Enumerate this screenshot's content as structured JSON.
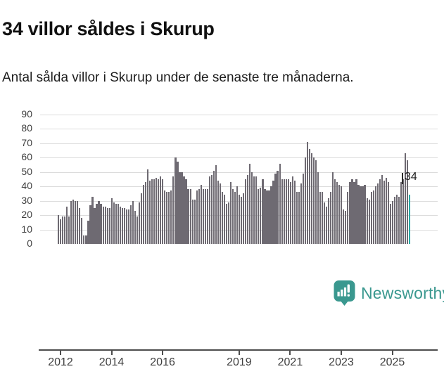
{
  "title": "34 villor såldes i Skurup",
  "subtitle": "Antal sålda villor i Skurup under de senaste tre månaderna.",
  "annotation": {
    "label": "34"
  },
  "branding": {
    "name": "Newsworthy"
  },
  "colors": {
    "bar": "#6e6a72",
    "highlight": "#2aa9a5",
    "axis": "#4d4d4d",
    "grid": "#dcdcdc",
    "brand_teal": "#3a988f",
    "text": "#3f3f3f"
  },
  "chart_data": {
    "type": "bar",
    "title": "34 villor såldes i Skurup",
    "subtitle": "Antal sålda villor i Skurup under de senaste tre månaderna.",
    "ylabel": "",
    "xlabel": "",
    "ylim": [
      0,
      90
    ],
    "y_ticks": [
      0,
      10,
      20,
      30,
      40,
      50,
      60,
      70,
      80,
      90
    ],
    "grid": true,
    "x_tick_labels": [
      "2012",
      "2014",
      "2016",
      "2019",
      "2021",
      "2023",
      "2025"
    ],
    "x_tick_years": [
      2012,
      2014,
      2016,
      2019,
      2021,
      2023,
      2025
    ],
    "start_month": "2011-12",
    "end_month": "2025-09",
    "frequency": "monthly",
    "highlight_last": true,
    "highlight_value": 34,
    "values": [
      20,
      17,
      19,
      19,
      26,
      19,
      30,
      31,
      30,
      30,
      25,
      18,
      6,
      6,
      16,
      27,
      33,
      25,
      28,
      30,
      28,
      26,
      26,
      25,
      25,
      32,
      29,
      28,
      28,
      26,
      25,
      25,
      24,
      24,
      27,
      30,
      23,
      19,
      29,
      35,
      41,
      43,
      52,
      44,
      45,
      45,
      46,
      45,
      47,
      45,
      37,
      36,
      36,
      37,
      47,
      60,
      57,
      50,
      50,
      47,
      45,
      38,
      38,
      31,
      31,
      37,
      38,
      41,
      38,
      38,
      38,
      47,
      48,
      51,
      55,
      44,
      42,
      36,
      34,
      28,
      29,
      43,
      38,
      36,
      40,
      34,
      33,
      35,
      45,
      48,
      56,
      50,
      47,
      47,
      38,
      39,
      45,
      38,
      37,
      37,
      40,
      44,
      49,
      51,
      56,
      45,
      45,
      45,
      45,
      43,
      47,
      44,
      36,
      36,
      42,
      49,
      60,
      71,
      66,
      63,
      60,
      58,
      50,
      36,
      36,
      29,
      26,
      32,
      36,
      50,
      45,
      43,
      41,
      40,
      24,
      23,
      36,
      43,
      45,
      43,
      45,
      41,
      40,
      40,
      41,
      32,
      31,
      36,
      37,
      40,
      42,
      45,
      48,
      44,
      46,
      43,
      28,
      30,
      33,
      34,
      33,
      43,
      45,
      63,
      58,
      34
    ]
  }
}
